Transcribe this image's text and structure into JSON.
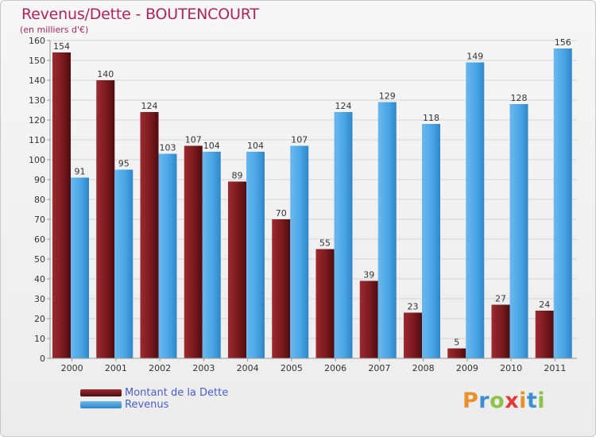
{
  "title": "Revenus/Dette - BOUTENCOURT",
  "subtitle": "(en milliers d'€)",
  "colors": {
    "debt": "#7a1a1e",
    "revenue": "#4aa6e6",
    "title": "#b0245a",
    "legend_text": "#4a5ec9"
  },
  "chart_data": {
    "type": "bar",
    "title": "Revenus/Dette - BOUTENCOURT",
    "subtitle": "(en milliers d'€)",
    "categories": [
      "2000",
      "2001",
      "2002",
      "2003",
      "2004",
      "2005",
      "2006",
      "2007",
      "2008",
      "2009",
      "2010",
      "2011"
    ],
    "series": [
      {
        "name": "Montant de la Dette",
        "values": [
          154,
          140,
          124,
          107,
          89,
          70,
          55,
          39,
          23,
          5,
          27,
          24
        ]
      },
      {
        "name": "Revenus",
        "values": [
          91,
          95,
          103,
          104,
          104,
          107,
          124,
          129,
          118,
          149,
          128,
          156
        ]
      }
    ],
    "ylim": [
      0,
      160
    ],
    "yticks": [
      0,
      10,
      20,
      30,
      40,
      50,
      60,
      70,
      80,
      90,
      100,
      110,
      120,
      130,
      140,
      150,
      160
    ],
    "grid": true,
    "legend_position": "bottom-left"
  },
  "legend": {
    "items": [
      {
        "label": "Montant de la Dette",
        "color": "#7a1a1e"
      },
      {
        "label": "Revenus",
        "color": "#4aa6e6"
      }
    ]
  },
  "logo": {
    "text": "Proxiti",
    "letter_colors": [
      "#e8902a",
      "#3b8fd0",
      "#8bc34a",
      "#e53935",
      "#e8902a",
      "#3b8fd0",
      "#8bc34a"
    ]
  }
}
